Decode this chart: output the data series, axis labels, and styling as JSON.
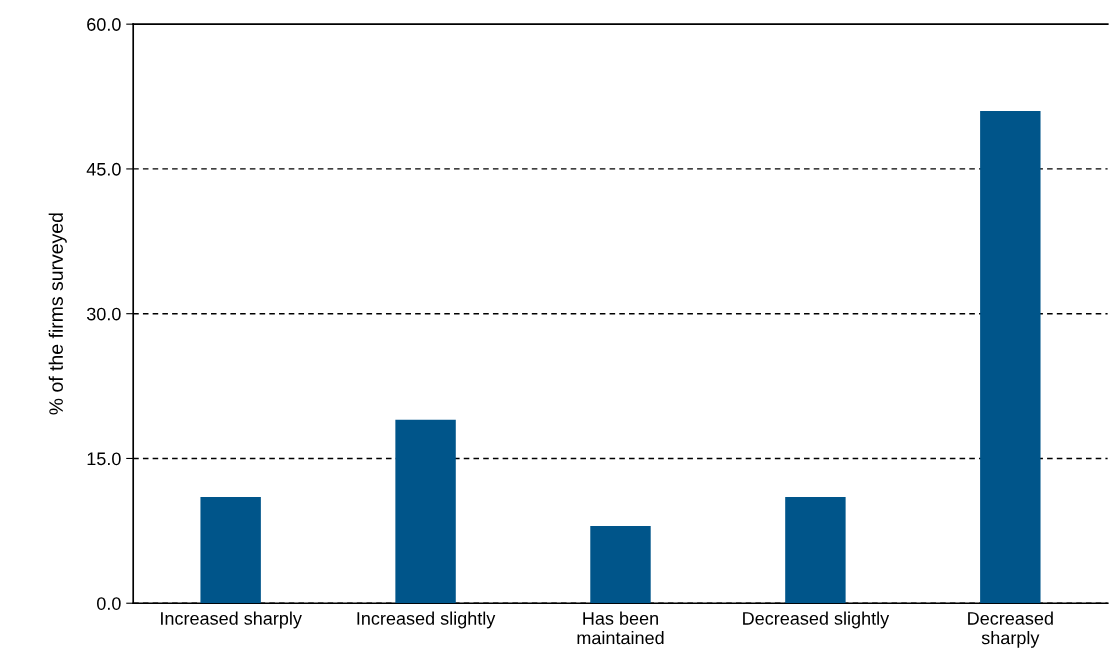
{
  "chart_data": {
    "type": "bar",
    "ylabel": "% of the firms surveyed",
    "categories": [
      "Increased sharply",
      "Increased slightly",
      "Has been\nmaintained",
      "Decreased slightly",
      "Decreased\nsharply"
    ],
    "values": [
      11,
      19,
      8,
      11,
      51
    ],
    "color": "#00558a",
    "ylim": [
      0,
      60
    ],
    "yticks": [
      {
        "value": 0,
        "label": "0.0"
      },
      {
        "value": 15,
        "label": "15.0"
      },
      {
        "value": 30,
        "label": "30.0"
      },
      {
        "value": 45,
        "label": "45.0"
      },
      {
        "value": 60,
        "label": "60.0"
      }
    ],
    "grid": "y"
  }
}
